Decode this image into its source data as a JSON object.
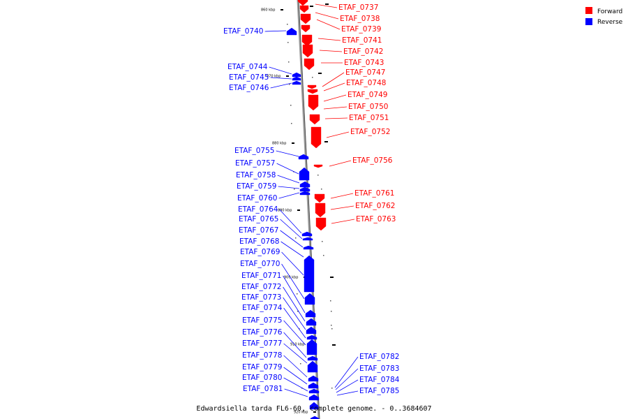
{
  "legend": [
    {
      "label": "Forward",
      "color": "#ff0000"
    },
    {
      "label": "Reverse",
      "color": "#0000ff"
    }
  ],
  "caption": "Edwardsiella tarda FL6-60, complete genome. - 0..3684607",
  "ticks": [
    "860 kbp",
    "870 kbp",
    "880 kbp",
    "890 kbp",
    "900 kbp",
    "910 kbp",
    "920 kbp"
  ],
  "genes_forward": [
    "ETAF_0737",
    "ETAF_0738",
    "ETAF_0739",
    "ETAF_0741",
    "ETAF_0742",
    "ETAF_0743",
    "ETAF_0747",
    "ETAF_0748",
    "ETAF_0749",
    "ETAF_0750",
    "ETAF_0751",
    "ETAF_0752",
    "ETAF_0756",
    "ETAF_0761",
    "ETAF_0762",
    "ETAF_0763"
  ],
  "genes_reverse_left": [
    "ETAF_0740",
    "ETAF_0744",
    "ETAF_0745",
    "ETAF_0746",
    "ETAF_0755",
    "ETAF_0757",
    "ETAF_0758",
    "ETAF_0759",
    "ETAF_0760",
    "ETAF_0764",
    "ETAF_0765",
    "ETAF_0767",
    "ETAF_0768",
    "ETAF_0769",
    "ETAF_0770",
    "ETAF_0771",
    "ETAF_0772",
    "ETAF_0773",
    "ETAF_0774",
    "ETAF_0775",
    "ETAF_0776",
    "ETAF_0777",
    "ETAF_0778",
    "ETAF_0779",
    "ETAF_0780",
    "ETAF_0781"
  ],
  "genes_reverse_right": [
    "ETAF_0782",
    "ETAF_0783",
    "ETAF_0784",
    "ETAF_0785"
  ],
  "colors": {
    "forward": "#ff0000",
    "reverse": "#0000ff",
    "axis": "#888888"
  }
}
